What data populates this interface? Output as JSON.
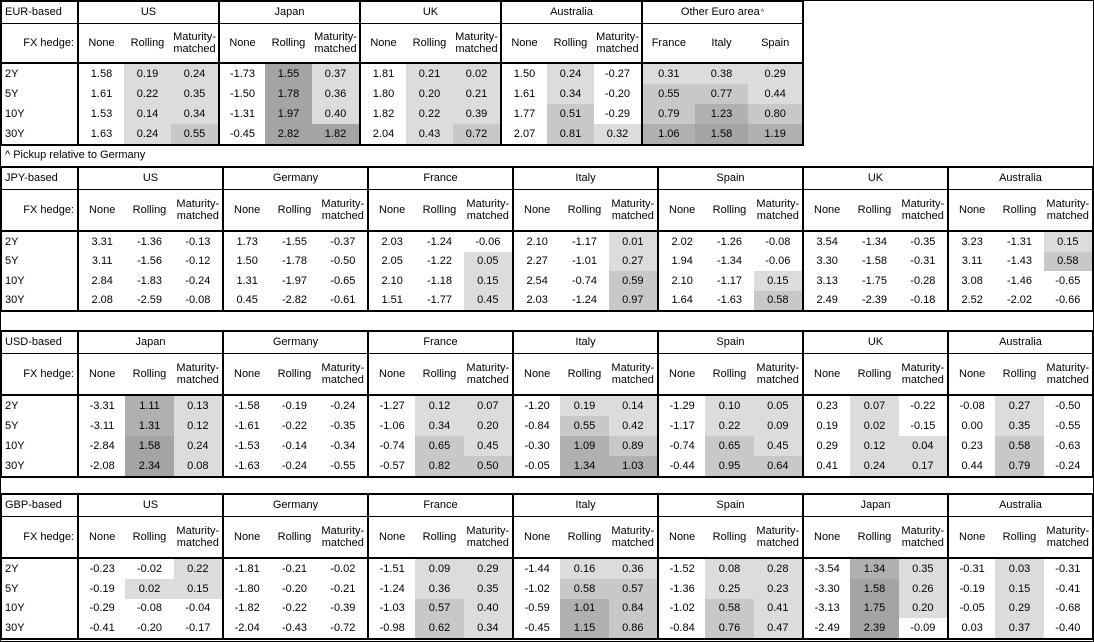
{
  "chart_data": {
    "type": "table",
    "hedge_label": "FX hedge:",
    "hedge_cols": [
      "None",
      "Rolling",
      "Maturity-matched"
    ],
    "tenors": [
      "2Y",
      "5Y",
      "10Y",
      "30Y"
    ],
    "footnote": "^ Pickup relative to Germany",
    "shading": {
      "description": "gray heatmap on hedged/pickup columns, positive values only",
      "thresholds": [
        0.5,
        1.0,
        1.5
      ],
      "colors": [
        "#dcdcdc",
        "#c8c8c8",
        "#b0b0b0",
        "#a4a4a4"
      ],
      "negative": "#ffffff"
    },
    "tables": [
      {
        "key": "eur",
        "base_label": "EUR-based",
        "groups": [
          {
            "name": "US",
            "rows": [
              [
                "1.58",
                "0.19",
                "0.24"
              ],
              [
                "1.61",
                "0.22",
                "0.35"
              ],
              [
                "1.53",
                "0.14",
                "0.34"
              ],
              [
                "1.63",
                "0.24",
                "0.55"
              ]
            ]
          },
          {
            "name": "Japan",
            "rows": [
              [
                "-1.73",
                "1.55",
                "0.37"
              ],
              [
                "-1.50",
                "1.78",
                "0.36"
              ],
              [
                "-1.31",
                "1.97",
                "0.40"
              ],
              [
                "-0.45",
                "2.82",
                "1.82"
              ]
            ]
          },
          {
            "name": "UK",
            "rows": [
              [
                "1.81",
                "0.21",
                "0.02"
              ],
              [
                "1.80",
                "0.20",
                "0.21"
              ],
              [
                "1.82",
                "0.22",
                "0.39"
              ],
              [
                "2.04",
                "0.43",
                "0.72"
              ]
            ]
          },
          {
            "name": "Australia",
            "rows": [
              [
                "1.50",
                "0.24",
                "-0.27"
              ],
              [
                "1.61",
                "0.34",
                "-0.20"
              ],
              [
                "1.77",
                "0.51",
                "-0.29"
              ],
              [
                "2.07",
                "0.81",
                "0.32"
              ]
            ]
          },
          {
            "name": "Other Euro area",
            "marker": "^",
            "cols": [
              "France",
              "Italy",
              "Spain"
            ],
            "shade_all": true,
            "rows": [
              [
                "0.31",
                "0.38",
                "0.29"
              ],
              [
                "0.55",
                "0.77",
                "0.44"
              ],
              [
                "0.79",
                "1.23",
                "0.80"
              ],
              [
                "1.06",
                "1.58",
                "1.19"
              ]
            ]
          }
        ]
      },
      {
        "key": "jpy",
        "base_label": "JPY-based",
        "groups": [
          {
            "name": "US",
            "rows": [
              [
                "3.31",
                "-1.36",
                "-0.13"
              ],
              [
                "3.11",
                "-1.56",
                "-0.12"
              ],
              [
                "2.84",
                "-1.83",
                "-0.24"
              ],
              [
                "2.08",
                "-2.59",
                "-0.08"
              ]
            ]
          },
          {
            "name": "Germany",
            "rows": [
              [
                "1.73",
                "-1.55",
                "-0.37"
              ],
              [
                "1.50",
                "-1.78",
                "-0.50"
              ],
              [
                "1.31",
                "-1.97",
                "-0.65"
              ],
              [
                "0.45",
                "-2.82",
                "-0.61"
              ]
            ]
          },
          {
            "name": "France",
            "rows": [
              [
                "2.03",
                "-1.24",
                "-0.06"
              ],
              [
                "2.05",
                "-1.22",
                "0.05"
              ],
              [
                "2.10",
                "-1.18",
                "0.15"
              ],
              [
                "1.51",
                "-1.77",
                "0.45"
              ]
            ]
          },
          {
            "name": "Italy",
            "rows": [
              [
                "2.10",
                "-1.17",
                "0.01"
              ],
              [
                "2.27",
                "-1.01",
                "0.27"
              ],
              [
                "2.54",
                "-0.74",
                "0.59"
              ],
              [
                "2.03",
                "-1.24",
                "0.97"
              ]
            ]
          },
          {
            "name": "Spain",
            "rows": [
              [
                "2.02",
                "-1.26",
                "-0.08"
              ],
              [
                "1.94",
                "-1.34",
                "-0.06"
              ],
              [
                "2.10",
                "-1.17",
                "0.15"
              ],
              [
                "1.64",
                "-1.63",
                "0.58"
              ]
            ]
          },
          {
            "name": "UK",
            "rows": [
              [
                "3.54",
                "-1.34",
                "-0.35"
              ],
              [
                "3.30",
                "-1.58",
                "-0.31"
              ],
              [
                "3.13",
                "-1.75",
                "-0.28"
              ],
              [
                "2.49",
                "-2.39",
                "-0.18"
              ]
            ]
          },
          {
            "name": "Australia",
            "rows": [
              [
                "3.23",
                "-1.31",
                "0.15"
              ],
              [
                "3.11",
                "-1.43",
                "0.58"
              ],
              [
                "3.08",
                "-1.46",
                "-0.65"
              ],
              [
                "2.52",
                "-2.02",
                "-0.66"
              ]
            ]
          }
        ]
      },
      {
        "key": "usd",
        "base_label": "USD-based",
        "groups": [
          {
            "name": "Japan",
            "rows": [
              [
                "-3.31",
                "1.11",
                "0.13"
              ],
              [
                "-3.11",
                "1.31",
                "0.12"
              ],
              [
                "-2.84",
                "1.58",
                "0.24"
              ],
              [
                "-2.08",
                "2.34",
                "0.08"
              ]
            ]
          },
          {
            "name": "Germany",
            "rows": [
              [
                "-1.58",
                "-0.19",
                "-0.24"
              ],
              [
                "-1.61",
                "-0.22",
                "-0.35"
              ],
              [
                "-1.53",
                "-0.14",
                "-0.34"
              ],
              [
                "-1.63",
                "-0.24",
                "-0.55"
              ]
            ]
          },
          {
            "name": "France",
            "rows": [
              [
                "-1.27",
                "0.12",
                "0.07"
              ],
              [
                "-1.06",
                "0.34",
                "0.20"
              ],
              [
                "-0.74",
                "0.65",
                "0.45"
              ],
              [
                "-0.57",
                "0.82",
                "0.50"
              ]
            ]
          },
          {
            "name": "Italy",
            "rows": [
              [
                "-1.20",
                "0.19",
                "0.14"
              ],
              [
                "-0.84",
                "0.55",
                "0.42"
              ],
              [
                "-0.30",
                "1.09",
                "0.89"
              ],
              [
                "-0.05",
                "1.34",
                "1.03"
              ]
            ]
          },
          {
            "name": "Spain",
            "rows": [
              [
                "-1.29",
                "0.10",
                "0.05"
              ],
              [
                "-1.17",
                "0.22",
                "0.09"
              ],
              [
                "-0.74",
                "0.65",
                "0.45"
              ],
              [
                "-0.44",
                "0.95",
                "0.64"
              ]
            ]
          },
          {
            "name": "UK",
            "rows": [
              [
                "0.23",
                "0.07",
                "-0.22"
              ],
              [
                "0.19",
                "0.02",
                "-0.15"
              ],
              [
                "0.29",
                "0.12",
                "0.04"
              ],
              [
                "0.41",
                "0.24",
                "0.17"
              ]
            ]
          },
          {
            "name": "Australia",
            "rows": [
              [
                "-0.08",
                "0.27",
                "-0.50"
              ],
              [
                "0.00",
                "0.35",
                "-0.55"
              ],
              [
                "0.23",
                "0.58",
                "-0.63"
              ],
              [
                "0.44",
                "0.79",
                "-0.24"
              ]
            ]
          }
        ]
      },
      {
        "key": "gbp",
        "base_label": "GBP-based",
        "groups": [
          {
            "name": "US",
            "rows": [
              [
                "-0.23",
                "-0.02",
                "0.22"
              ],
              [
                "-0.19",
                "0.02",
                "0.15"
              ],
              [
                "-0.29",
                "-0.08",
                "-0.04"
              ],
              [
                "-0.41",
                "-0.20",
                "-0.17"
              ]
            ]
          },
          {
            "name": "Germany",
            "rows": [
              [
                "-1.81",
                "-0.21",
                "-0.02"
              ],
              [
                "-1.80",
                "-0.20",
                "-0.21"
              ],
              [
                "-1.82",
                "-0.22",
                "-0.39"
              ],
              [
                "-2.04",
                "-0.43",
                "-0.72"
              ]
            ]
          },
          {
            "name": "France",
            "rows": [
              [
                "-1.51",
                "0.09",
                "0.29"
              ],
              [
                "-1.24",
                "0.36",
                "0.35"
              ],
              [
                "-1.03",
                "0.57",
                "0.40"
              ],
              [
                "-0.98",
                "0.62",
                "0.34"
              ]
            ]
          },
          {
            "name": "Italy",
            "rows": [
              [
                "-1.44",
                "0.16",
                "0.36"
              ],
              [
                "-1.02",
                "0.58",
                "0.57"
              ],
              [
                "-0.59",
                "1.01",
                "0.84"
              ],
              [
                "-0.45",
                "1.15",
                "0.86"
              ]
            ]
          },
          {
            "name": "Spain",
            "rows": [
              [
                "-1.52",
                "0.08",
                "0.28"
              ],
              [
                "-1.36",
                "0.25",
                "0.23"
              ],
              [
                "-1.02",
                "0.58",
                "0.41"
              ],
              [
                "-0.84",
                "0.76",
                "0.47"
              ]
            ]
          },
          {
            "name": "Japan",
            "rows": [
              [
                "-3.54",
                "1.34",
                "0.35"
              ],
              [
                "-3.30",
                "1.58",
                "0.26"
              ],
              [
                "-3.13",
                "1.75",
                "0.20"
              ],
              [
                "-2.49",
                "2.39",
                "-0.09"
              ]
            ]
          },
          {
            "name": "Australia",
            "rows": [
              [
                "-0.31",
                "0.03",
                "-0.31"
              ],
              [
                "-0.19",
                "0.15",
                "-0.41"
              ],
              [
                "-0.05",
                "0.29",
                "-0.68"
              ],
              [
                "0.03",
                "0.37",
                "-0.40"
              ]
            ]
          }
        ]
      }
    ]
  }
}
